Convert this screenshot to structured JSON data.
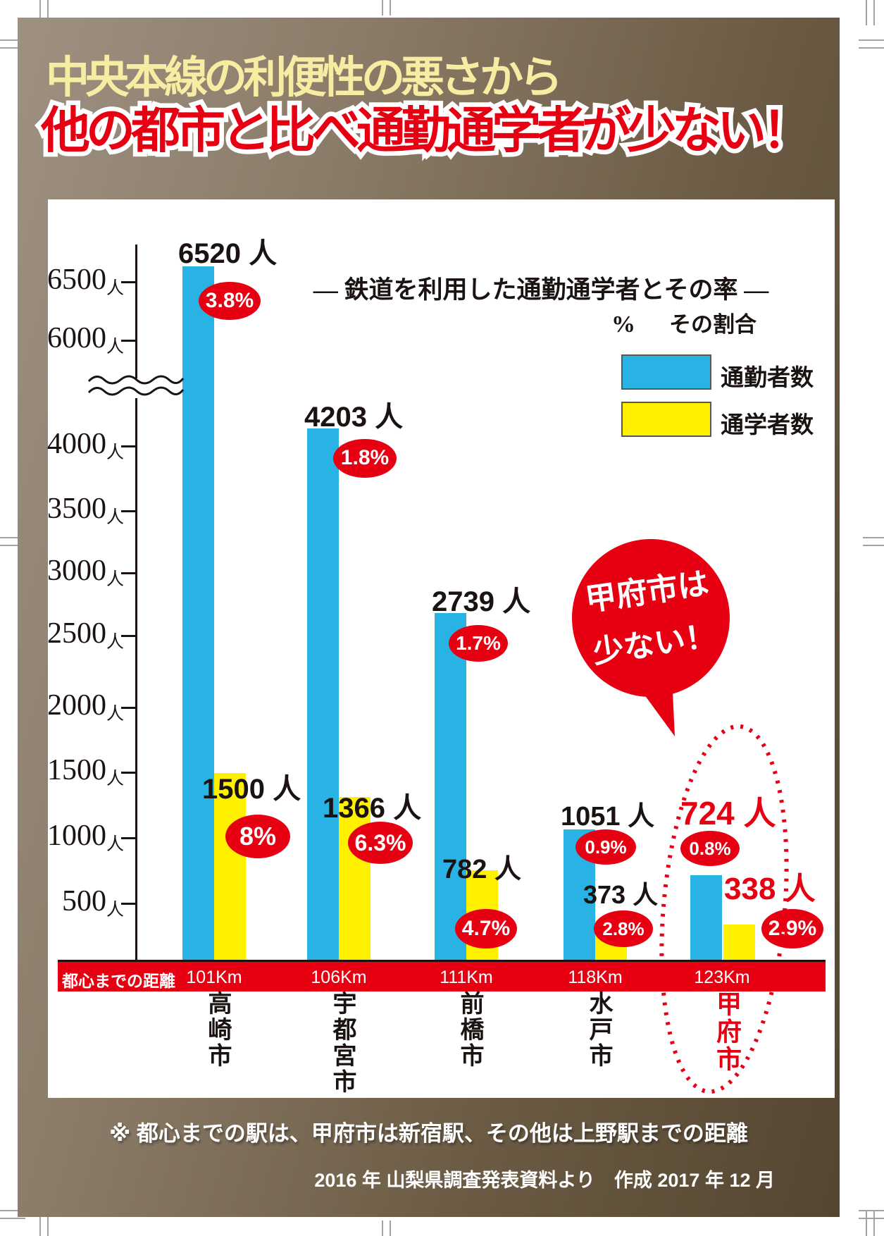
{
  "poster": {
    "title_line1": "中央本線の利便性の悪さから",
    "title_line2": "他の都市と比べ通勤通学者が少ない！"
  },
  "chart_data": {
    "type": "bar",
    "title": "— 鉄道を利用した通勤通学者とその率 —",
    "legend": {
      "heading_symbol": "%",
      "heading_label": "その割合",
      "position": "top-right",
      "series": [
        {
          "name": "通勤者数",
          "color": "#29b2e4"
        },
        {
          "name": "通学者数",
          "color": "#fff000"
        }
      ]
    },
    "y_axis": {
      "unit": "人",
      "ticks": [
        6500,
        6000,
        4000,
        3500,
        3000,
        2500,
        2000,
        1500,
        1000,
        500
      ],
      "axis_break_between": [
        6000,
        4000
      ]
    },
    "categories": [
      "高崎市",
      "宇都宮市",
      "前橋市",
      "水戸市",
      "甲府市"
    ],
    "series": [
      {
        "name": "通勤者数",
        "values": [
          6520,
          4203,
          2739,
          1051,
          724
        ],
        "rate_labels": [
          "3.8%",
          "1.8%",
          "1.7%",
          "0.9%",
          "0.8%"
        ]
      },
      {
        "name": "通学者数",
        "values": [
          1500,
          1366,
          782,
          373,
          338
        ],
        "rate_labels": [
          "8%",
          "6.3%",
          "4.7%",
          "2.8%",
          "2.9%"
        ]
      }
    ],
    "value_suffix": " 人",
    "distance_row": {
      "label": "都心までの距離",
      "values": [
        "101Km",
        "106Km",
        "111Km",
        "118Km",
        "123Km"
      ]
    },
    "highlight_index": 4,
    "callout": {
      "line1": "甲府市は",
      "line2": "少ない！"
    },
    "colors": {
      "commuter_blue": "#29b2e4",
      "student_yellow": "#fff000",
      "accent_red": "#e60012",
      "ink": "#1a1311",
      "title_cream": "#f6eda2"
    }
  },
  "footer": {
    "note": "※ 都心までの駅は、甲府市は新宿駅、その他は上野駅までの距離",
    "credit": "2016 年 山梨県調査発表資料より　作成 2017 年 12 月"
  }
}
